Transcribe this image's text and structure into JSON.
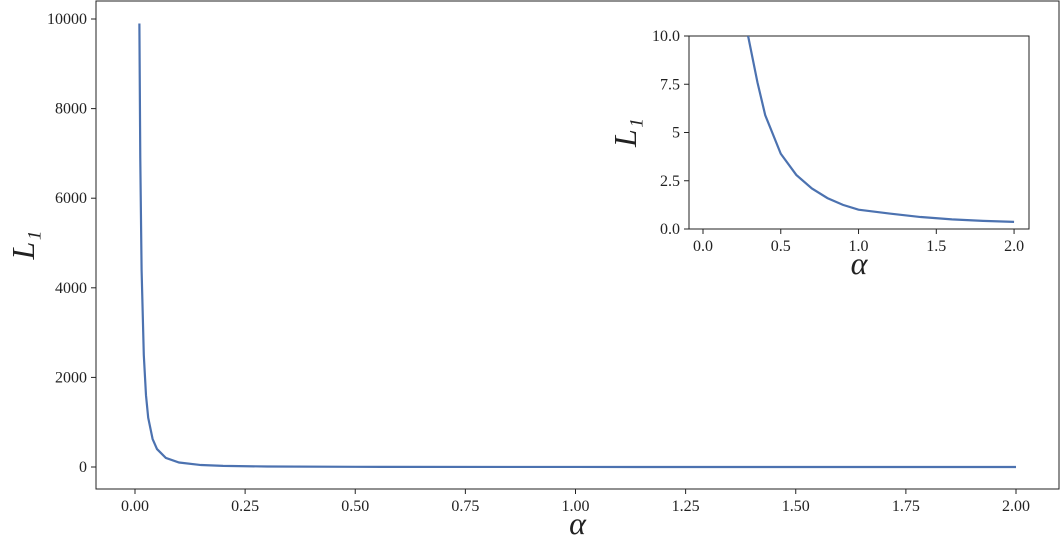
{
  "chart_data": [
    {
      "type": "line",
      "xlabel": "α",
      "ylabel": "L₁",
      "color": "#4c72b0",
      "x": [
        0.01,
        0.012,
        0.015,
        0.02,
        0.025,
        0.03,
        0.04,
        0.05,
        0.07,
        0.1,
        0.15,
        0.2,
        0.3,
        0.5,
        1.0,
        2.0
      ],
      "values": [
        9900,
        6900,
        4400,
        2500,
        1600,
        1100,
        625,
        400,
        204,
        100,
        44,
        25,
        11,
        4,
        1,
        0.37
      ],
      "xlim": [
        -0.0885,
        2.0976
      ],
      "ylim": [
        -491,
        10402
      ],
      "xticks": [
        {
          "value": 0,
          "label": "0.00"
        },
        {
          "value": 0.25,
          "label": "0.25"
        },
        {
          "value": 0.5,
          "label": "0.50"
        },
        {
          "value": 0.75,
          "label": "0.75"
        },
        {
          "value": 1,
          "label": "1.00"
        },
        {
          "value": 1.25,
          "label": "1.25"
        },
        {
          "value": 1.5,
          "label": "1.50"
        },
        {
          "value": 1.75,
          "label": "1.75"
        },
        {
          "value": 2,
          "label": "2.00"
        }
      ],
      "yticks": [
        0,
        2000,
        4000,
        6000,
        8000,
        10000
      ]
    },
    {
      "type": "line",
      "xlabel": "α",
      "ylabel": "L₁",
      "color": "#4c72b0",
      "x": [
        0.29,
        0.35,
        0.4,
        0.5,
        0.6,
        0.7,
        0.8,
        0.9,
        1.0,
        1.2,
        1.4,
        1.6,
        1.8,
        2.0
      ],
      "values": [
        10.0,
        7.6,
        5.9,
        3.9,
        2.8,
        2.1,
        1.6,
        1.25,
        1.0,
        0.8,
        0.62,
        0.5,
        0.42,
        0.37
      ],
      "xlim": [
        -0.09,
        2.096
      ],
      "ylim": [
        0,
        10
      ],
      "xticks": [
        {
          "value": 0,
          "label": "0.0"
        },
        {
          "value": 0.5,
          "label": "0.5"
        },
        {
          "value": 1,
          "label": "1.0"
        },
        {
          "value": 1.5,
          "label": "1.5"
        },
        {
          "value": 2,
          "label": "2.0"
        }
      ],
      "yticks": [
        {
          "value": 0,
          "label": "0.0"
        },
        2.5,
        5,
        7.5,
        {
          "value": 10,
          "label": "10.0"
        }
      ]
    }
  ]
}
